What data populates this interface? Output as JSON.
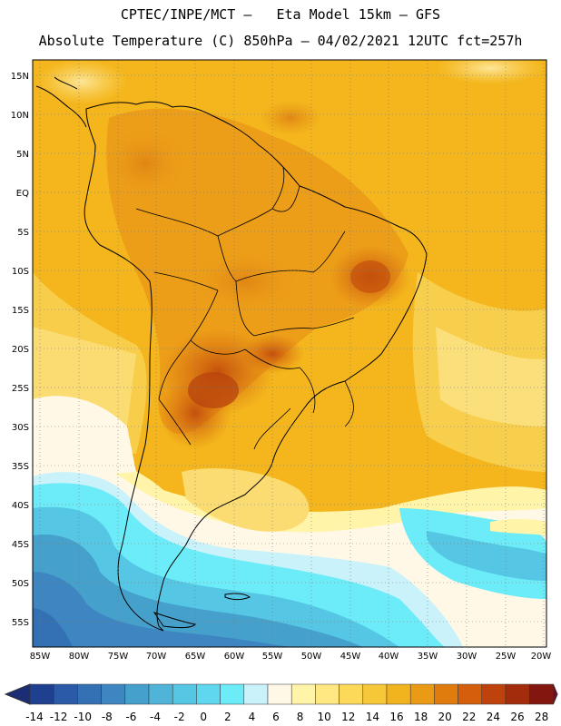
{
  "header": {
    "line1": "CPTEC/INPE/MCT –   Eta Model 15km – GFS",
    "line2": "Absolute Temperature (C) 850hPa – 04/02/2021 12UTC fct=257h"
  },
  "axes": {
    "lat_labels": [
      "15N",
      "10N",
      "5N",
      "EQ",
      "5S",
      "10S",
      "15S",
      "20S",
      "25S",
      "30S",
      "35S",
      "40S",
      "45S",
      "50S",
      "55S"
    ],
    "lon_labels": [
      "85W",
      "80W",
      "75W",
      "70W",
      "65W",
      "60W",
      "55W",
      "50W",
      "45W",
      "40W",
      "35W",
      "30W",
      "25W",
      "20W"
    ]
  },
  "colorbar": {
    "labels": [
      "-14",
      "-12",
      "-10",
      "-8",
      "-6",
      "-4",
      "-2",
      "0",
      "2",
      "4",
      "6",
      "8",
      "10",
      "12",
      "14",
      "16",
      "18",
      "20",
      "22",
      "24",
      "26",
      "28"
    ],
    "colors": [
      "#1f3f8f",
      "#2a5aa8",
      "#3470b4",
      "#3d86c1",
      "#46a0cc",
      "#4fb4d8",
      "#55c6e4",
      "#5fd8ef",
      "#6cecf8",
      "#caf2fb",
      "#fff8e6",
      "#fff4a8",
      "#ffe782",
      "#fdd95a",
      "#f7c73a",
      "#f2b41e",
      "#eb9a15",
      "#e07b0e",
      "#d45e0c",
      "#bf420c",
      "#a32c0c",
      "#83170f"
    ],
    "low_color": "#1a2d75",
    "high_color": "#6e0c20"
  }
}
